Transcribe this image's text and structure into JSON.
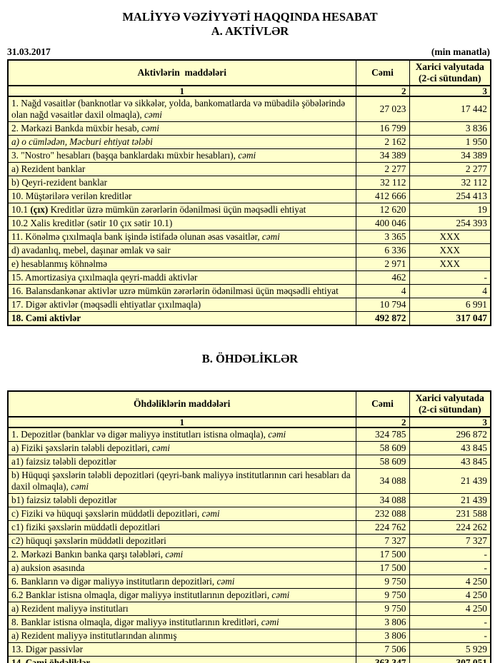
{
  "title": "MALİYYƏ VƏZİYYƏTİ HAQQINDA HESABAT",
  "date": "31.03.2017",
  "unit_note": "(min manatla)",
  "colors": {
    "cell_bg": "#FFFFCC",
    "white_cell_bg": "#FFFFFF",
    "border": "#000000",
    "page_bg": "#FFFFFF",
    "text": "#000000"
  },
  "section_a": {
    "title": "A. AKTİVLƏR",
    "header": {
      "items": "Aktivlərin  maddələri",
      "total": "Cəmi",
      "foreign": "Xarici valyutada (2-ci sütundan)"
    },
    "colnums": [
      "1",
      "2",
      "3"
    ],
    "rows": [
      {
        "label": [
          [
            "1. Nağd vəsaitlər (banknotlar və sikkələr, yolda, bankomatlarda və mübadilə şöbələrində olan nağd vəsaitlər daxil olmaqla), ",
            "n"
          ],
          [
            "cəmi",
            "i"
          ]
        ],
        "c2": "27 023",
        "c3": "17 442",
        "w2": true,
        "w3": true,
        "numtop": true
      },
      {
        "label": [
          [
            "2. Mərkəzi Bankda müxbir hesab, ",
            "n"
          ],
          [
            "cəmi",
            "i"
          ]
        ],
        "c2": "16 799",
        "c3": "3 836",
        "w2": true,
        "w3": true
      },
      {
        "label": [
          [
            "a) o cümlədən, Məcburi ehtiyat tələbi",
            "i"
          ]
        ],
        "c2": "2 162",
        "c3": "1 950",
        "indent": 1,
        "w2": true,
        "w3": true
      },
      {
        "label": [
          [
            "3. \"Nostro\" hesabları (başqa banklardakı müxbir hesabları), ",
            "n"
          ],
          [
            "cəmi",
            "i"
          ]
        ],
        "c2": "34 389",
        "c3": "34 389"
      },
      {
        "label": [
          [
            "a) Rezident banklar",
            "n"
          ]
        ],
        "c2": "2 277",
        "c3": "2 277",
        "indent": 1
      },
      {
        "label": [
          [
            "b) Qeyri-rezident banklar",
            "n"
          ]
        ],
        "c2": "32 112",
        "c3": "32 112",
        "indent": 1
      },
      {
        "label": [
          [
            "10. Müştərilərə verilən kreditlər",
            "n"
          ]
        ],
        "c2": "412 666",
        "c3": "254 413"
      },
      {
        "label": [
          [
            "10.1 ",
            "n"
          ],
          [
            "(çıx)",
            "b"
          ],
          [
            " Kreditlər üzrə mümkün zərərlərin ödənilməsi üçün məqsədli ehtiyat",
            "n"
          ]
        ],
        "c2": "12 620",
        "c3": "19"
      },
      {
        "label": [
          [
            "10.2 Xalis kreditlər (sətir 10 çıx sətir 10.1)",
            "n"
          ]
        ],
        "c2": "400 046",
        "c3": "254 393"
      },
      {
        "label": [
          [
            "11. Könəlmə çıxılmaqla bank işində istifadə olunan əsas vəsaitlər, ",
            "n"
          ],
          [
            "cəmi",
            "i"
          ]
        ],
        "c2": "3 365",
        "c3": "XXX",
        "center3": true
      },
      {
        "label": [
          [
            "d) avadanlıq, mebel, daşınar əmlak və sair",
            "n"
          ]
        ],
        "c2": "6 336",
        "c3": "XXX",
        "indent": 1,
        "w2": true,
        "center3": true
      },
      {
        "label": [
          [
            "e) hesablanmış köhnəlmə",
            "n"
          ]
        ],
        "c2": "2 971",
        "c3": "XXX",
        "indent": 1,
        "w2": true,
        "center3": true
      },
      {
        "label": [
          [
            "15. Amortizasiya çıxılmaqla qeyri-maddi aktivlər",
            "n"
          ]
        ],
        "c2": "462",
        "c3": "-",
        "w2": true,
        "w3": true
      },
      {
        "label": [
          [
            "16. Balansdankənar aktivlər uzrə mümkün zərərlərin ödənilməsi üçün məqsədli ehtiyat",
            "n"
          ]
        ],
        "c2": "4",
        "c3": "4"
      },
      {
        "label": [
          [
            "17. Digər aktivlər (məqsədli ehtiyatlar çıxılmaqla)",
            "n"
          ]
        ],
        "c2": "10 794",
        "c3": "6 991"
      },
      {
        "label": [
          [
            "18. Cəmi aktivlər",
            "n"
          ]
        ],
        "c2": "492 872",
        "c3": "317 047",
        "bold": true
      }
    ]
  },
  "section_b": {
    "title": "B. ÖHDƏLİKLƏR",
    "header": {
      "items": "Öhdəliklərin maddələri",
      "total": "Cəmi",
      "foreign": "Xarici valyutada (2-ci sütundan)"
    },
    "colnums": [
      "1",
      "2",
      "3"
    ],
    "rows": [
      {
        "label": [
          [
            "1. Depozitlər (banklar və digər maliyyə institutları istisna olmaqla), ",
            "n"
          ],
          [
            "cəmi",
            "i"
          ]
        ],
        "c2": "324 785",
        "c3": "296 872"
      },
      {
        "label": [
          [
            "a) Fiziki şəxslərin tələbli depozitləri, ",
            "n"
          ],
          [
            "cəmi",
            "i"
          ]
        ],
        "c2": "58 609",
        "c3": "43 845",
        "indent": 1
      },
      {
        "label": [
          [
            "a1) faizsiz tələbli depozitlər",
            "n"
          ]
        ],
        "c2": "58 609",
        "c3": "43 845",
        "indent": 2,
        "w2": true,
        "w3": true
      },
      {
        "label": [
          [
            "b) Hüquqi şəxslərin tələbli depozitləri (qeyri-bank maliyyə institutlarının cari hesabları da daxil olmaqla), ",
            "n"
          ],
          [
            "cəmi",
            "i"
          ]
        ],
        "c2": "34 088",
        "c3": "21 439",
        "indent": 1
      },
      {
        "label": [
          [
            "b1) faizsiz tələbli depozitlər",
            "n"
          ]
        ],
        "c2": "34 088",
        "c3": "21 439",
        "indent": 2,
        "w2": true,
        "w3": true
      },
      {
        "label": [
          [
            "c) Fiziki və hüquqi şəxslərin müddətli depozitləri, ",
            "n"
          ],
          [
            "cəmi",
            "i"
          ]
        ],
        "c2": "232 088",
        "c3": "231 588",
        "indent": 1
      },
      {
        "label": [
          [
            "c1) fiziki şəxslərin müddətli depozitləri",
            "n"
          ]
        ],
        "c2": "224 762",
        "c3": "224 262",
        "indent": 2,
        "w2": true,
        "w3": true
      },
      {
        "label": [
          [
            "c2) hüquqi şəxslərin müddətli depozitləri",
            "n"
          ]
        ],
        "c2": "7 327",
        "c3": "7 327",
        "indent": 2,
        "w2": true,
        "w3": true
      },
      {
        "label": [
          [
            "2. Mərkəzi Bankın banka qarşı tələbləri, ",
            "n"
          ],
          [
            "cəmi",
            "i"
          ]
        ],
        "c2": "17 500",
        "c3": "-"
      },
      {
        "label": [
          [
            "a) auksion əsasında",
            "n"
          ]
        ],
        "c2": "17 500",
        "c3": "-",
        "indent": 1,
        "w2": true,
        "w3": true
      },
      {
        "label": [
          [
            "6. Bankların və digər maliyyə institutların depozitləri, ",
            "n"
          ],
          [
            "cəmi",
            "i"
          ]
        ],
        "c2": "9 750",
        "c3": "4 250"
      },
      {
        "label": [
          [
            "6.2 Banklar istisna olmaqla, digər maliyyə institutlarının depozitləri, ",
            "n"
          ],
          [
            "cəmi",
            "i"
          ]
        ],
        "c2": "9 750",
        "c3": "4 250"
      },
      {
        "label": [
          [
            "a) Rezident maliyyə institutları",
            "n"
          ]
        ],
        "c2": "9 750",
        "c3": "4 250",
        "indent": 1,
        "w2": true,
        "w3": true
      },
      {
        "label": [
          [
            "8. Banklar istisna olmaqla, digər maliyyə institutlarının kreditləri, ",
            "n"
          ],
          [
            "cəmi",
            "i"
          ]
        ],
        "c2": "3 806",
        "c3": "-"
      },
      {
        "label": [
          [
            "a) Rezident maliyyə institutlarından alınmış",
            "n"
          ]
        ],
        "c2": "3 806",
        "c3": "-",
        "indent": 1,
        "w2": true,
        "w3": true
      },
      {
        "label": [
          [
            "13. Digər passivlər",
            "n"
          ]
        ],
        "c2": "7 506",
        "c3": "5 929"
      },
      {
        "label": [
          [
            "14. Cəmi öhdəliklər",
            "n"
          ]
        ],
        "c2": "363 347",
        "c3": "307 051",
        "bold": true
      }
    ]
  }
}
